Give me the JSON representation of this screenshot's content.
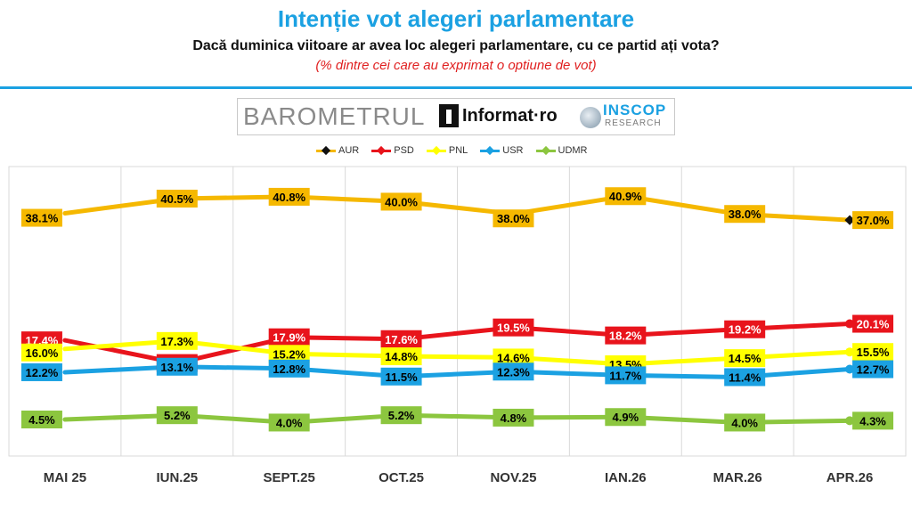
{
  "header": {
    "title": "Intenție vot alegeri parlamentare",
    "question": "Dacă duminica viitoare ar avea loc alegeri parlamentare, cu ce partid ați vota?",
    "note": "(% dintre cei care au exprimat o optiune de vot)"
  },
  "banner": {
    "barometer": "BAROMETRUL",
    "informat": "Informat·ro",
    "inscop": "INSCOP",
    "inscop_sub": "RESEARCH"
  },
  "chart_data": {
    "type": "line",
    "categories": [
      "MAI 25",
      "IUN.25",
      "SEPT.25",
      "OCT.25",
      "NOV.25",
      "IAN.26",
      "MAR.26",
      "APR.26"
    ],
    "ylim": [
      0,
      45
    ],
    "grid": "vertical",
    "legend": "top",
    "series": [
      {
        "name": "AUR",
        "color": "#f5b800",
        "label_text": "#000000",
        "values": [
          38.1,
          40.5,
          40.8,
          40.0,
          38.0,
          40.9,
          38.0,
          37.0
        ],
        "labels": [
          "38.1%",
          "40.5%",
          "40.8%",
          "40.0%",
          "38.0%",
          "40.9%",
          "38.0%",
          "37.0%"
        ]
      },
      {
        "name": "PSD",
        "color": "#e8141c",
        "label_text": "#ffffff",
        "values": [
          17.4,
          13.7,
          17.9,
          17.6,
          19.5,
          18.2,
          19.2,
          20.1
        ],
        "labels": [
          "17.4%",
          "13.7%",
          "17.9%",
          "17.6%",
          "19.5%",
          "18.2%",
          "19.2%",
          "20.1%"
        ]
      },
      {
        "name": "PNL",
        "color": "#ffff00",
        "label_text": "#000000",
        "values": [
          16.0,
          17.3,
          15.2,
          14.8,
          14.6,
          13.5,
          14.5,
          15.5
        ],
        "labels": [
          "16.0%",
          "17.3%",
          "15.2%",
          "14.8%",
          "14.6%",
          "13.5%",
          "14.5%",
          "15.5%"
        ]
      },
      {
        "name": "USR",
        "color": "#1ba1e2",
        "label_text": "#000000",
        "values": [
          12.2,
          13.1,
          12.8,
          11.5,
          12.3,
          11.7,
          11.4,
          12.7
        ],
        "labels": [
          "12.2%",
          "13.1%",
          "12.8%",
          "11.5%",
          "12.3%",
          "11.7%",
          "11.4%",
          "12.7%"
        ]
      },
      {
        "name": "UDMR",
        "color": "#8cc63f",
        "label_text": "#000000",
        "values": [
          4.5,
          5.2,
          4.0,
          5.2,
          4.8,
          4.9,
          4.0,
          4.3
        ],
        "labels": [
          "4.5%",
          "5.2%",
          "4.0%",
          "5.2%",
          "4.8%",
          "4.9%",
          "4.0%",
          "4.3%"
        ]
      }
    ]
  }
}
